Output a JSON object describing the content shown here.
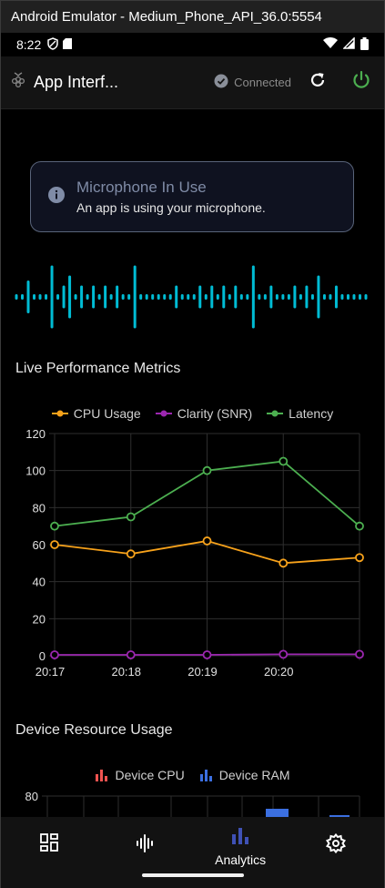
{
  "window": {
    "title": "Android Emulator - Medium_Phone_API_36.0:5554"
  },
  "status_bar": {
    "time": "8:22"
  },
  "app_bar": {
    "title": "App Interf...",
    "connection_status": "Connected"
  },
  "banner": {
    "title": "Microphone In Use",
    "subtitle": "An app is using your microphone."
  },
  "waveform": {
    "color": "#00bcd4",
    "levels": [
      1,
      1,
      3,
      1,
      1,
      1,
      6,
      1,
      2,
      4,
      1,
      2,
      1,
      2,
      1,
      2,
      1,
      2,
      1,
      1,
      6,
      1,
      1,
      1,
      1,
      1,
      1,
      2,
      1,
      1,
      1,
      2,
      1,
      2,
      1,
      2,
      1,
      2,
      1,
      1,
      6,
      1,
      1,
      2,
      1,
      1,
      1,
      2,
      1,
      2,
      1,
      4,
      1,
      1,
      2,
      1,
      1,
      1,
      1,
      1
    ]
  },
  "performance": {
    "title": "Live Performance Metrics",
    "legend": [
      {
        "label": "CPU Usage",
        "color": "#f7a21b"
      },
      {
        "label": "Clarity (SNR)",
        "color": "#9c27b0"
      },
      {
        "label": "Latency",
        "color": "#4caf50"
      }
    ]
  },
  "resources": {
    "title": "Device Resource Usage",
    "legend": [
      {
        "label": "Device CPU",
        "color": "#ef5350"
      },
      {
        "label": "Device RAM",
        "color": "#3b6fe0"
      }
    ]
  },
  "chart_data": [
    {
      "type": "line",
      "x": [
        "20:17",
        "20:18",
        "20:19",
        "20:20",
        ""
      ],
      "ylim": [
        0,
        120
      ],
      "yticks": [
        0,
        20,
        40,
        60,
        80,
        100,
        120
      ],
      "series": [
        {
          "name": "CPU Usage",
          "color": "#f7a21b",
          "values": [
            60,
            55,
            62,
            50,
            53
          ]
        },
        {
          "name": "Clarity (SNR)",
          "color": "#9c27b0",
          "values": [
            0.5,
            0.5,
            0.5,
            0.8,
            0.8
          ]
        },
        {
          "name": "Latency",
          "color": "#4caf50",
          "values": [
            70,
            75,
            100,
            105,
            70
          ]
        }
      ]
    },
    {
      "type": "bar",
      "yticks": [
        80
      ],
      "series": [
        {
          "name": "Device CPU",
          "color": "#ef5350",
          "values": []
        },
        {
          "name": "Device RAM",
          "color": "#3b6fe0",
          "values": []
        }
      ]
    }
  ],
  "bottom_nav": {
    "tabs": [
      {
        "icon": "dashboard-icon",
        "label": ""
      },
      {
        "icon": "audio-icon",
        "label": ""
      },
      {
        "icon": "bar-chart-icon",
        "label": "Analytics"
      },
      {
        "icon": "settings-icon",
        "label": ""
      }
    ]
  }
}
